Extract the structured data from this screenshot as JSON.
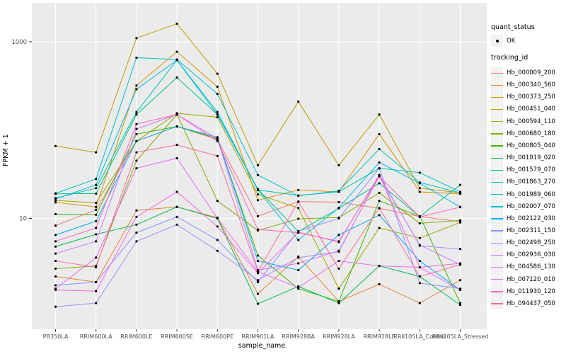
{
  "chart_data": {
    "type": "line",
    "title": "",
    "xlabel": "sample_name",
    "ylabel": "FPKM + 1",
    "y_scale": "log10",
    "y_ticks": [
      1000,
      10
    ],
    "y_minor_ticks": [
      100,
      1
    ],
    "ylim_log10": [
      -0.06,
      3.35
    ],
    "grid": "on",
    "legend_position": "right",
    "panel_background": "#EBEBEB",
    "point_color": "#000000",
    "categories": [
      "PB350LA",
      "RRIM600LA",
      "RRIM600LE",
      "RRIM600SE",
      "RRIM600PE",
      "RRIM901LA",
      "RRIM928BA",
      "RRIM928LA",
      "RRIM928LE",
      "RRII105LA_Control",
      "RRII105LA_Stressed"
    ],
    "series": [
      {
        "name": "Hb_000009_200",
        "color": "#F8766D",
        "values": [
          8.3,
          12.5,
          75,
          110,
          78,
          10.6,
          15.5,
          15.3,
          13,
          10.5,
          9.2
        ]
      },
      {
        "name": "Hb_000340_560",
        "color": "#EA8331",
        "values": [
          2.2,
          1.9,
          12.3,
          13.5,
          10.2,
          1.4,
          3.7,
          1.15,
          1.8,
          1.1,
          2.0
        ]
      },
      {
        "name": "Hb_000373_250",
        "color": "#D89000",
        "values": [
          15.2,
          13.5,
          320,
          770,
          310,
          16.1,
          21,
          20,
          90,
          20,
          19
        ]
      },
      {
        "name": "Hb_000451_040",
        "color": "#C09B00",
        "values": [
          66,
          56,
          1100,
          1600,
          435,
          40,
          210,
          40,
          150,
          22,
          19.5
        ]
      },
      {
        "name": "Hb_000594_110",
        "color": "#A3A500",
        "values": [
          16,
          15,
          75,
          155,
          140,
          18.7,
          13.1,
          1.6,
          7.8,
          6.0,
          9.0
        ]
      },
      {
        "name": "Hb_000680_180",
        "color": "#7CAE00",
        "values": [
          2.7,
          2.9,
          45,
          150,
          15.8,
          7.3,
          9.9,
          10.2,
          19.5,
          8.8,
          9.5
        ]
      },
      {
        "name": "Hb_000805_040",
        "color": "#39B600",
        "values": [
          11.2,
          11,
          90,
          110,
          80,
          3.8,
          1.6,
          1.15,
          15.8,
          10.6,
          1.1
        ]
      },
      {
        "name": "Hb_001019_020",
        "color": "#00BB4E",
        "values": [
          4.8,
          6.6,
          8.5,
          13.5,
          10,
          1.08,
          1.7,
          1.1,
          2.9,
          2.2,
          1.05
        ]
      },
      {
        "name": "Hb_001579_070",
        "color": "#00C087",
        "values": [
          19,
          19.1,
          150,
          394,
          150,
          21.5,
          7.1,
          13,
          25,
          10.5,
          24
        ]
      },
      {
        "name": "Hb_001863_270",
        "color": "#00C0B2",
        "values": [
          17,
          22,
          160,
          620,
          160,
          21,
          18.2,
          20,
          37,
          33,
          20
        ]
      },
      {
        "name": "Hb_001989_060",
        "color": "#00BFC4",
        "values": [
          19.2,
          28,
          660,
          630,
          257,
          31,
          18,
          20.5,
          61,
          25.5,
          19.5
        ]
      },
      {
        "name": "Hb_002007_070",
        "color": "#00B8E5",
        "values": [
          16.6,
          24,
          290,
          620,
          150,
          21,
          5.7,
          13.2,
          43,
          25,
          13.5
        ]
      },
      {
        "name": "Hb_002122_030",
        "color": "#00ACFC",
        "values": [
          6.5,
          9.3,
          75,
          110,
          83,
          3.3,
          2.6,
          6.5,
          10.9,
          3.3,
          1.55
        ]
      },
      {
        "name": "Hb_002311_150",
        "color": "#8893FF",
        "values": [
          1.75,
          1.9,
          6.9,
          10.4,
          5.7,
          1.9,
          7.2,
          10,
          37,
          1.85,
          1.6
        ]
      },
      {
        "name": "Hb_002498_250",
        "color": "#AC88FF",
        "values": [
          1.0,
          1.1,
          5.5,
          8.5,
          4.3,
          2.0,
          3.6,
          4.2,
          31,
          4.9,
          4.5
        ]
      },
      {
        "name": "Hb_002936_030",
        "color": "#CF78FF",
        "values": [
          4.0,
          5.5,
          103,
          150,
          80,
          2.6,
          3.1,
          4.3,
          30,
          5.0,
          3.0
        ]
      },
      {
        "name": "Hb_004586_130",
        "color": "#E76BF3",
        "values": [
          1.6,
          3.6,
          37,
          48,
          10,
          2.5,
          1.65,
          3.3,
          2.9,
          2.8,
          1.55
        ]
      },
      {
        "name": "Hb_007120_010",
        "color": "#F863DF",
        "values": [
          1.55,
          1.5,
          10.4,
          20,
          8.1,
          2.4,
          7,
          5.4,
          31,
          2.8,
          3.1
        ]
      },
      {
        "name": "Hb_011930_120",
        "color": "#FF62BD",
        "values": [
          5.5,
          7.8,
          117,
          150,
          75,
          7.5,
          6.9,
          5.5,
          30,
          10.4,
          13.4
        ]
      },
      {
        "name": "Hb_094437_050",
        "color": "#FF6A99",
        "values": [
          3.3,
          2.8,
          56,
          68,
          51,
          2.5,
          15.5,
          2.7,
          13.1,
          2.2,
          3.0
        ]
      }
    ]
  },
  "legend": {
    "quant_status_title": "quant_status",
    "ok_label": "OK",
    "tracking_id_title": "tracking_id"
  },
  "axis": {
    "x_title": "sample_name",
    "y_title": "FPKM + 1"
  },
  "colors": {
    "panel_background": "#EBEBEB",
    "gridline": "#FFFFFF",
    "tick_text": "#4D4D4D",
    "tick_mark": "#333333"
  }
}
